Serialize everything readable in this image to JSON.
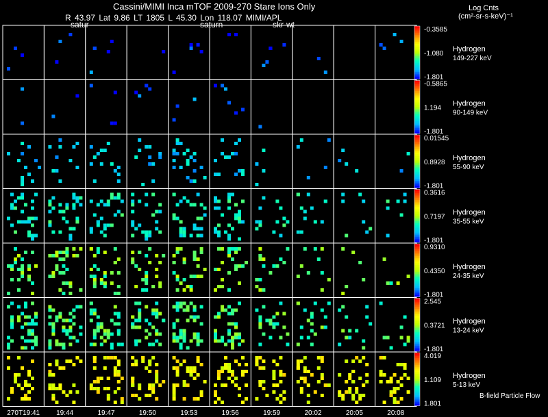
{
  "header": {
    "title": "Cassini/MIMI Inca mTOF  2009-270   Stare   Ions Only",
    "ephemeris": "R       43.97 Lat 9.86 LT 1805 L       45.30 Lon        118.07  MIMI/APL",
    "sublabels": [
      "satur",
      "saturn",
      "skr-wt"
    ],
    "units_line1": "Log Cnts",
    "units_line2": "(cm²-sr-s-keV)⁻¹"
  },
  "footer_note": "B-field Particle Flow",
  "chart_data": {
    "type": "heatmap",
    "title": "Cassini/MIMI Inca mTOF  2009-270   Stare   Ions Only",
    "colorbar_label": "Log Cnts (cm²-sr-s-keV)⁻¹",
    "colormap": [
      "#0000ff",
      "#00c0ff",
      "#00ffc0",
      "#c0ff00",
      "#ffff00",
      "#ff8000",
      "#ff0000"
    ],
    "time_labels": [
      "270T19:41",
      "19:44",
      "19:47",
      "19:50",
      "19:53",
      "19:56",
      "19:59",
      "20:02",
      "20:05",
      "20:08"
    ],
    "panels": [
      {
        "species": "Hydrogen",
        "energy": "149-227 keV",
        "cmax": "-0.3585",
        "cmid": "-1.080",
        "cmin": "-1.801",
        "counts": [
          3,
          3,
          5,
          1,
          5,
          2,
          6,
          2,
          0,
          5
        ],
        "level": 0.05
      },
      {
        "species": "Hydrogen",
        "energy": "90-149 keV",
        "cmax": "-0.5865",
        "cmid": "1.194",
        "cmin": "-1.801",
        "counts": [
          2,
          2,
          4,
          5,
          3,
          6,
          1,
          0,
          0,
          0
        ],
        "level": 0.07
      },
      {
        "species": "Hydrogen",
        "energy": "55-90 keV",
        "cmax": "0.01545",
        "cmid": "0.8928",
        "cmin": "-1.801",
        "counts": [
          14,
          12,
          14,
          12,
          24,
          16,
          4,
          5,
          4,
          2
        ],
        "level": 0.22
      },
      {
        "species": "Hydrogen",
        "energy": "35-55 keV",
        "cmax": "0.3616",
        "cmid": "0.7197",
        "cmin": "-1.801",
        "counts": [
          30,
          34,
          30,
          28,
          32,
          34,
          14,
          13,
          8,
          7
        ],
        "level": 0.3
      },
      {
        "species": "Hydrogen",
        "energy": "24-35 keV",
        "cmax": "0.9310",
        "cmid": "0.4350",
        "cmin": "-1.801",
        "counts": [
          28,
          36,
          32,
          28,
          32,
          30,
          18,
          10,
          6,
          5
        ],
        "level": 0.42
      },
      {
        "species": "Hydrogen",
        "energy": "13-24 keV",
        "cmax": "2.545",
        "cmid": "0.3721",
        "cmin": "-1.801",
        "counts": [
          46,
          48,
          46,
          44,
          50,
          46,
          24,
          20,
          14,
          10
        ],
        "level": 0.38
      },
      {
        "species": "Hydrogen",
        "energy": "5-13 keV",
        "cmax": "4.019",
        "cmid": "1.109",
        "cmin": "1.801",
        "counts": [
          36,
          34,
          38,
          40,
          36,
          40,
          34,
          32,
          34,
          36
        ],
        "level": 0.62
      }
    ]
  }
}
